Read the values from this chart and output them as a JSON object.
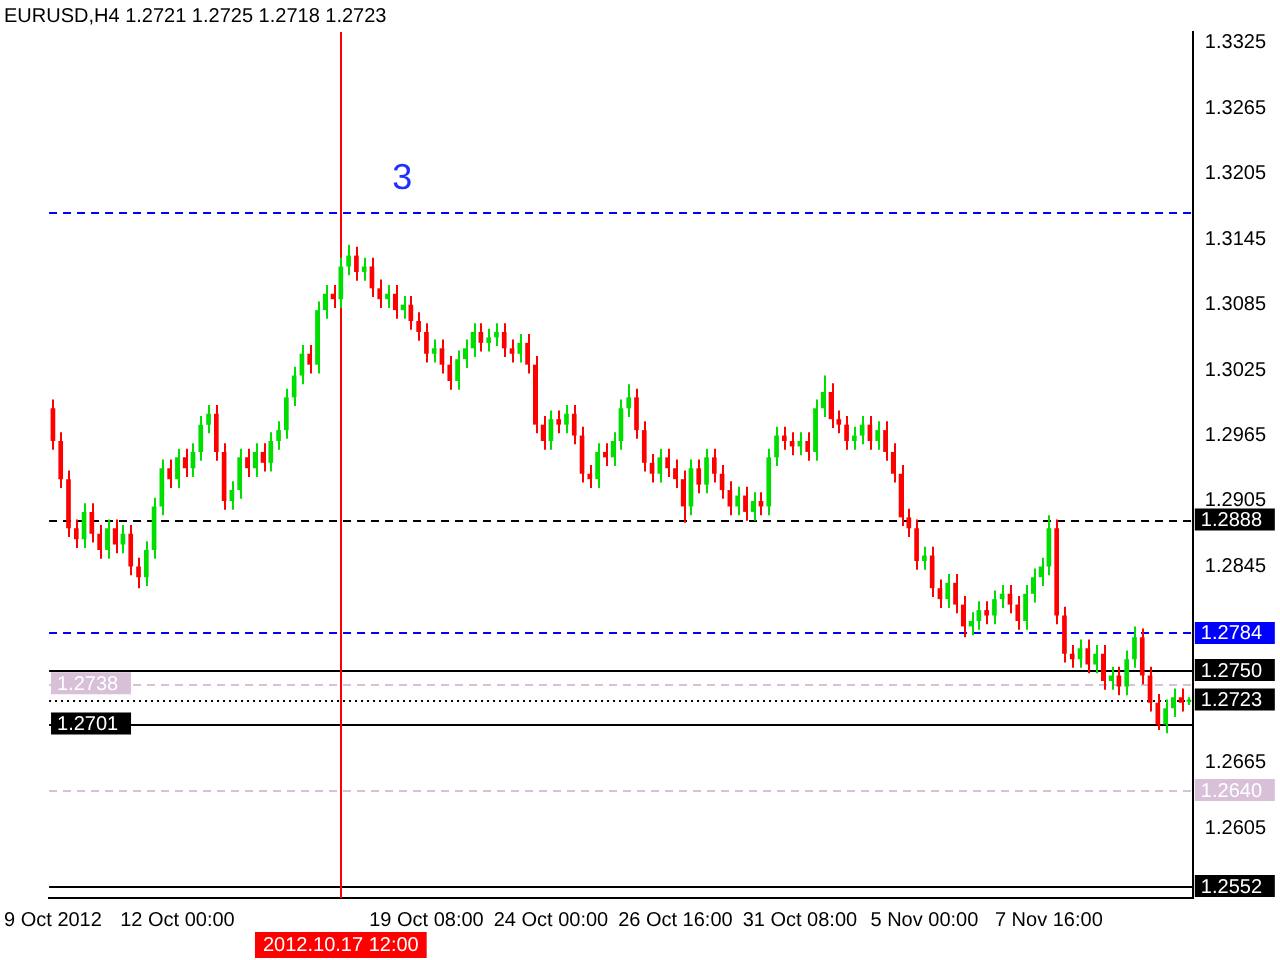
{
  "chart_data": {
    "type": "candlestick",
    "title": "EURUSD,H4 1.2721 1.2725 1.2718 1.2723",
    "annotations": [
      "3"
    ],
    "categories": [
      "9 Oct 2012",
      null,
      null,
      null,
      null,
      null,
      null,
      null,
      null,
      null,
      null,
      null,
      null,
      null,
      null,
      null,
      "12 Oct 00:00",
      null,
      null,
      null,
      null,
      null,
      null,
      null,
      null,
      null,
      null,
      null,
      null,
      null,
      null,
      null,
      null,
      null,
      null,
      null,
      null,
      "2012.10.17 12:00",
      null,
      null,
      null,
      null,
      null,
      null,
      null,
      null,
      null,
      null,
      "19 Oct 08:00",
      null,
      null,
      null,
      null,
      null,
      null,
      null,
      null,
      null,
      null,
      null,
      null,
      null,
      null,
      null,
      "24 Oct 00:00",
      null,
      null,
      null,
      null,
      null,
      null,
      null,
      null,
      null,
      null,
      null,
      null,
      null,
      null,
      null,
      "26 Oct 16:00",
      null,
      null,
      null,
      null,
      null,
      null,
      null,
      null,
      null,
      null,
      null,
      null,
      null,
      null,
      null,
      "31 Oct 08:00",
      null,
      null,
      null,
      null,
      null,
      null,
      null,
      null,
      null,
      null,
      null,
      null,
      null,
      null,
      null,
      "5 Nov 00:00",
      null,
      null,
      null,
      null,
      null,
      null,
      null,
      null,
      null,
      null,
      null,
      null,
      null,
      null,
      null,
      "7 Nov 16:00",
      null,
      null,
      null,
      null,
      null,
      null,
      null,
      null,
      null,
      null,
      null,
      null,
      null,
      null,
      null,
      null,
      null,
      null
    ],
    "ohlc": [
      [
        1.299,
        1.2998,
        1.2952,
        1.296
      ],
      [
        1.296,
        1.2968,
        1.2917,
        1.2925
      ],
      [
        1.2925,
        1.2933,
        1.2872,
        1.288
      ],
      [
        1.288,
        1.2888,
        1.2862,
        1.287
      ],
      [
        1.287,
        1.2903,
        1.2862,
        1.2895
      ],
      [
        1.2895,
        1.2903,
        1.2867,
        1.2875
      ],
      [
        1.2875,
        1.2883,
        1.2852,
        1.286
      ],
      [
        1.286,
        1.2888,
        1.2852,
        1.288
      ],
      [
        1.288,
        1.2888,
        1.2857,
        1.2865
      ],
      [
        1.2865,
        1.2883,
        1.2857,
        1.2875
      ],
      [
        1.2875,
        1.2883,
        1.2837,
        1.2845
      ],
      [
        1.2845,
        1.2853,
        1.2825,
        1.2835
      ],
      [
        1.2835,
        1.2868,
        1.2827,
        1.286
      ],
      [
        1.286,
        1.2908,
        1.2852,
        1.29
      ],
      [
        1.29,
        1.2943,
        1.2892,
        1.2935
      ],
      [
        1.2935,
        1.2943,
        1.2917,
        1.2925
      ],
      [
        1.2925,
        1.2953,
        1.2917,
        1.2945
      ],
      [
        1.2945,
        1.2953,
        1.2927,
        1.2935
      ],
      [
        1.2935,
        1.2958,
        1.2927,
        1.295
      ],
      [
        1.295,
        1.2983,
        1.2942,
        1.2975
      ],
      [
        1.2975,
        1.2993,
        1.2967,
        1.2985
      ],
      [
        1.2985,
        1.2993,
        1.2942,
        1.295
      ],
      [
        1.295,
        1.2958,
        1.2897,
        1.2905
      ],
      [
        1.2905,
        1.2923,
        1.2897,
        1.2915
      ],
      [
        1.2915,
        1.2953,
        1.2907,
        1.2945
      ],
      [
        1.2945,
        1.2953,
        1.2927,
        1.2935
      ],
      [
        1.2935,
        1.2958,
        1.2927,
        1.295
      ],
      [
        1.295,
        1.2958,
        1.2932,
        1.294
      ],
      [
        1.294,
        1.2968,
        1.2932,
        1.296
      ],
      [
        1.296,
        1.2978,
        1.2952,
        1.297
      ],
      [
        1.297,
        1.3008,
        1.2962,
        1.3
      ],
      [
        1.3,
        1.3028,
        1.2992,
        1.302
      ],
      [
        1.302,
        1.3048,
        1.3012,
        1.304
      ],
      [
        1.304,
        1.3048,
        1.3022,
        1.303
      ],
      [
        1.303,
        1.3088,
        1.3022,
        1.308
      ],
      [
        1.308,
        1.3103,
        1.3072,
        1.3095
      ],
      [
        1.3095,
        1.3103,
        1.3082,
        1.309
      ],
      [
        1.309,
        1.3128,
        1.3082,
        1.312
      ],
      [
        1.312,
        1.314,
        1.3112,
        1.313
      ],
      [
        1.313,
        1.3138,
        1.3107,
        1.3115
      ],
      [
        1.3115,
        1.3128,
        1.3107,
        1.312
      ],
      [
        1.312,
        1.3128,
        1.3092,
        1.31
      ],
      [
        1.31,
        1.3108,
        1.3082,
        1.309
      ],
      [
        1.309,
        1.3103,
        1.3082,
        1.3095
      ],
      [
        1.3095,
        1.3103,
        1.3072,
        1.308
      ],
      [
        1.308,
        1.3093,
        1.3072,
        1.3085
      ],
      [
        1.3085,
        1.3093,
        1.3062,
        1.307
      ],
      [
        1.307,
        1.3078,
        1.3052,
        1.306
      ],
      [
        1.306,
        1.3068,
        1.3032,
        1.304
      ],
      [
        1.304,
        1.3053,
        1.3032,
        1.3045
      ],
      [
        1.3045,
        1.3053,
        1.3022,
        1.303
      ],
      [
        1.303,
        1.3038,
        1.3007,
        1.3015
      ],
      [
        1.3015,
        1.3043,
        1.3007,
        1.3035
      ],
      [
        1.3035,
        1.3053,
        1.3027,
        1.3045
      ],
      [
        1.3045,
        1.3068,
        1.3037,
        1.306
      ],
      [
        1.306,
        1.3068,
        1.3042,
        1.305
      ],
      [
        1.305,
        1.3063,
        1.3042,
        1.3055
      ],
      [
        1.3055,
        1.3068,
        1.3047,
        1.306
      ],
      [
        1.306,
        1.3068,
        1.3037,
        1.3045
      ],
      [
        1.3045,
        1.3053,
        1.3032,
        1.304
      ],
      [
        1.304,
        1.3058,
        1.3032,
        1.305
      ],
      [
        1.305,
        1.3058,
        1.3022,
        1.303
      ],
      [
        1.303,
        1.3038,
        1.2967,
        1.2975
      ],
      [
        1.2975,
        1.2983,
        1.2952,
        1.296
      ],
      [
        1.296,
        1.2988,
        1.2952,
        1.298
      ],
      [
        1.298,
        1.2988,
        1.2967,
        1.2975
      ],
      [
        1.2975,
        1.2993,
        1.2967,
        1.2985
      ],
      [
        1.2985,
        1.2993,
        1.2957,
        1.2965
      ],
      [
        1.2965,
        1.2973,
        1.2922,
        1.293
      ],
      [
        1.293,
        1.2938,
        1.2917,
        1.2925
      ],
      [
        1.2925,
        1.2958,
        1.2917,
        1.295
      ],
      [
        1.295,
        1.2958,
        1.2937,
        1.2945
      ],
      [
        1.2945,
        1.2968,
        1.2937,
        1.296
      ],
      [
        1.296,
        1.2998,
        1.2952,
        1.299
      ],
      [
        1.299,
        1.3012,
        1.2982,
        1.3
      ],
      [
        1.3,
        1.3008,
        1.2962,
        1.297
      ],
      [
        1.297,
        1.2978,
        1.2932,
        1.294
      ],
      [
        1.294,
        1.2948,
        1.2922,
        1.293
      ],
      [
        1.293,
        1.2953,
        1.2922,
        1.2945
      ],
      [
        1.2945,
        1.2953,
        1.2927,
        1.2935
      ],
      [
        1.2935,
        1.2943,
        1.2917,
        1.2925
      ],
      [
        1.2925,
        1.2933,
        1.2885,
        1.29
      ],
      [
        1.29,
        1.2943,
        1.2892,
        1.2935
      ],
      [
        1.2935,
        1.2943,
        1.2912,
        1.292
      ],
      [
        1.292,
        1.2953,
        1.2912,
        1.2945
      ],
      [
        1.2945,
        1.2953,
        1.2922,
        1.293
      ],
      [
        1.293,
        1.2938,
        1.2907,
        1.2915
      ],
      [
        1.2915,
        1.2923,
        1.2892,
        1.29
      ],
      [
        1.29,
        1.2918,
        1.2892,
        1.291
      ],
      [
        1.291,
        1.2918,
        1.2887,
        1.2895
      ],
      [
        1.2895,
        1.2913,
        1.2887,
        1.2905
      ],
      [
        1.2905,
        1.2913,
        1.2892,
        1.29
      ],
      [
        1.29,
        1.2953,
        1.2892,
        1.2945
      ],
      [
        1.2945,
        1.2973,
        1.2937,
        1.2965
      ],
      [
        1.2965,
        1.2973,
        1.2952,
        1.296
      ],
      [
        1.296,
        1.2968,
        1.2947,
        1.2955
      ],
      [
        1.2955,
        1.2968,
        1.2947,
        1.296
      ],
      [
        1.296,
        1.2968,
        1.2942,
        1.295
      ],
      [
        1.295,
        1.2998,
        1.2942,
        1.299
      ],
      [
        1.299,
        1.302,
        1.2982,
        1.3005
      ],
      [
        1.3005,
        1.3013,
        1.2972,
        1.298
      ],
      [
        1.298,
        1.2988,
        1.2967,
        1.2975
      ],
      [
        1.2975,
        1.2983,
        1.2952,
        1.296
      ],
      [
        1.296,
        1.2973,
        1.2952,
        1.2965
      ],
      [
        1.2965,
        1.2983,
        1.2957,
        1.2975
      ],
      [
        1.2975,
        1.2983,
        1.2952,
        1.296
      ],
      [
        1.296,
        1.2978,
        1.2952,
        1.297
      ],
      [
        1.297,
        1.2978,
        1.2942,
        1.295
      ],
      [
        1.295,
        1.2958,
        1.2922,
        1.293
      ],
      [
        1.293,
        1.2938,
        1.2882,
        1.289
      ],
      [
        1.289,
        1.2898,
        1.2872,
        1.288
      ],
      [
        1.288,
        1.2888,
        1.2842,
        1.285
      ],
      [
        1.285,
        1.2863,
        1.2842,
        1.2855
      ],
      [
        1.2855,
        1.2863,
        1.2817,
        1.2825
      ],
      [
        1.2825,
        1.2833,
        1.2807,
        1.2815
      ],
      [
        1.2815,
        1.2838,
        1.2807,
        1.283
      ],
      [
        1.283,
        1.2838,
        1.2802,
        1.281
      ],
      [
        1.281,
        1.2818,
        1.278,
        1.279
      ],
      [
        1.279,
        1.2803,
        1.2782,
        1.2795
      ],
      [
        1.2795,
        1.2813,
        1.2787,
        1.2805
      ],
      [
        1.2805,
        1.2813,
        1.2792,
        1.28
      ],
      [
        1.28,
        1.2823,
        1.2792,
        1.2815
      ],
      [
        1.2815,
        1.2828,
        1.2807,
        1.282
      ],
      [
        1.282,
        1.2828,
        1.2802,
        1.281
      ],
      [
        1.281,
        1.2818,
        1.2787,
        1.2795
      ],
      [
        1.2795,
        1.2828,
        1.2787,
        1.282
      ],
      [
        1.282,
        1.2843,
        1.2812,
        1.2835
      ],
      [
        1.2835,
        1.2853,
        1.2827,
        1.2845
      ],
      [
        1.2845,
        1.2892,
        1.2837,
        1.288
      ],
      [
        1.288,
        1.2888,
        1.2792,
        1.28
      ],
      [
        1.28,
        1.2808,
        1.2757,
        1.2765
      ],
      [
        1.2765,
        1.2773,
        1.2752,
        1.276
      ],
      [
        1.276,
        1.2778,
        1.2752,
        1.277
      ],
      [
        1.277,
        1.2778,
        1.2747,
        1.2755
      ],
      [
        1.2755,
        1.2773,
        1.2747,
        1.2765
      ],
      [
        1.2765,
        1.2773,
        1.2732,
        1.274
      ],
      [
        1.274,
        1.2753,
        1.2732,
        1.2745
      ],
      [
        1.2745,
        1.2753,
        1.2727,
        1.2735
      ],
      [
        1.2735,
        1.2768,
        1.2727,
        1.276
      ],
      [
        1.276,
        1.279,
        1.2752,
        1.278
      ],
      [
        1.278,
        1.2788,
        1.2737,
        1.2745
      ],
      [
        1.2745,
        1.2753,
        1.2712,
        1.272
      ],
      [
        1.272,
        1.2728,
        1.2695,
        1.27
      ],
      [
        1.27,
        1.2723,
        1.2692,
        1.2715
      ],
      [
        1.2715,
        1.2733,
        1.2707,
        1.2725
      ],
      [
        1.2725,
        1.2733,
        1.2712,
        1.272
      ],
      [
        1.2721,
        1.2725,
        1.2718,
        1.2723
      ]
    ],
    "ylim": [
      1.2541,
      1.3335
    ],
    "yticks": [
      1.2605,
      1.2665,
      1.2845,
      1.2905,
      1.2965,
      1.3025,
      1.3085,
      1.3145,
      1.3205,
      1.3265,
      1.3325
    ],
    "ref_lines": [
      {
        "axis": "y",
        "value": 1.317,
        "label": null,
        "color": "#0000ff",
        "line_style": "dashed"
      },
      {
        "axis": "y",
        "value": 1.2888,
        "label": "1.2888",
        "color": "#000000",
        "line_style": "dashed"
      },
      {
        "axis": "y",
        "value": 1.2784,
        "label": "1.2784",
        "color": "#0000ff",
        "line_style": "dashed"
      },
      {
        "axis": "y",
        "value": 1.275,
        "label": "1.2750",
        "color": "#000000",
        "line_style": "solid"
      },
      {
        "axis": "y",
        "value": 1.2738,
        "label": "1.2738",
        "color": "#d8c0d8",
        "line_style": "dashed"
      },
      {
        "axis": "y",
        "value": 1.2723,
        "label": "1.2723",
        "color": "#000000",
        "line_style": "dotted"
      },
      {
        "axis": "y",
        "value": 1.2701,
        "label": "1.2701",
        "color": "#000000",
        "line_style": "solid"
      },
      {
        "axis": "y",
        "value": 1.264,
        "label": "1.2640",
        "color": "#d8c0d8",
        "line_style": "dashed"
      },
      {
        "axis": "y",
        "value": 1.2552,
        "label": "1.2552",
        "color": "#000000",
        "line_style": "solid"
      },
      {
        "axis": "x",
        "value": "2012.10.17 12:00",
        "label": null,
        "color": "#ff0000",
        "line_style": "solid"
      }
    ]
  }
}
